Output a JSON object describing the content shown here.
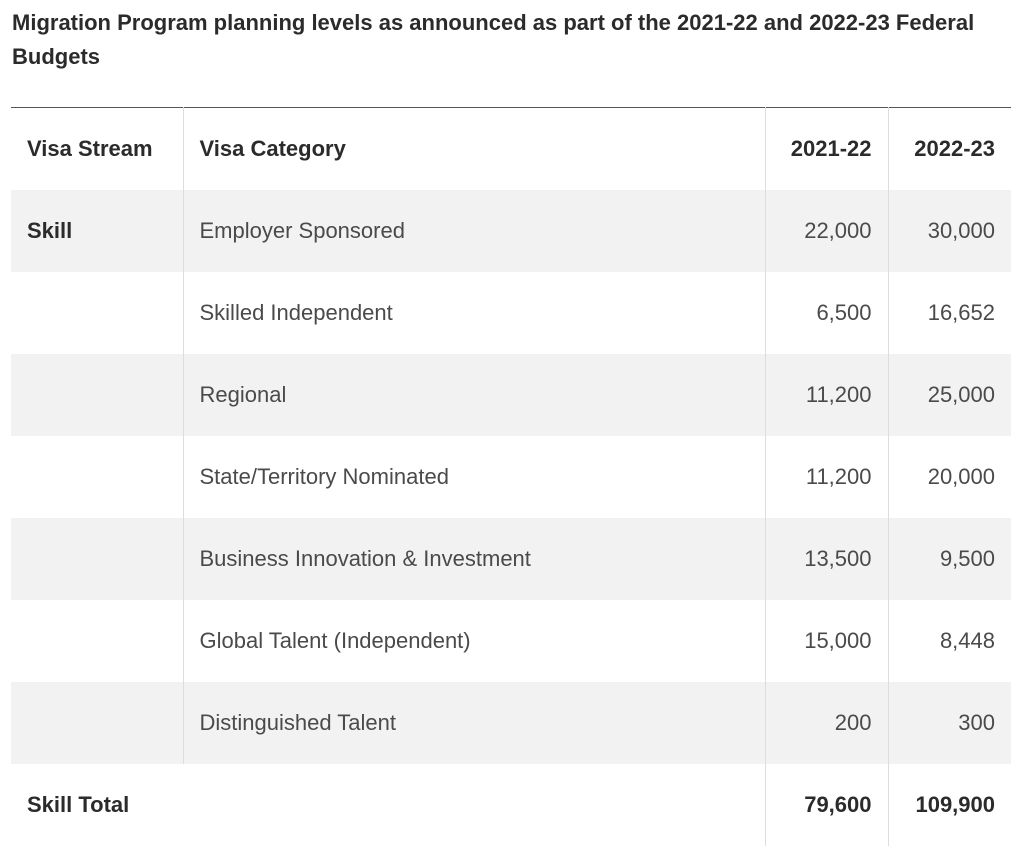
{
  "caption": "Migration Program planning levels as announced as part of the 2021-22 and 2022-23 Federal Budgets",
  "table": {
    "headers": [
      "Visa Stream",
      "Visa Category",
      "2021-22",
      "2022-23"
    ],
    "rows": [
      {
        "stream": "Skill",
        "category": "Employer Sponsored",
        "y2021": "22,000",
        "y2022": "30,000"
      },
      {
        "stream": "",
        "category": "Skilled Independent",
        "y2021": "6,500",
        "y2022": "16,652"
      },
      {
        "stream": "",
        "category": "Regional",
        "y2021": "11,200",
        "y2022": "25,000"
      },
      {
        "stream": "",
        "category": "State/Territory Nominated",
        "y2021": "11,200",
        "y2022": "20,000"
      },
      {
        "stream": "",
        "category": "Business Innovation & Investment",
        "y2021": "13,500",
        "y2022": "9,500"
      },
      {
        "stream": "",
        "category": "Global Talent (Independent)",
        "y2021": "15,000",
        "y2022": "8,448"
      },
      {
        "stream": "",
        "category": "Distinguished Talent",
        "y2021": "200",
        "y2022": "300"
      }
    ],
    "total": {
      "label": "Skill Total",
      "y2021": "79,600",
      "y2022": "109,900"
    }
  }
}
